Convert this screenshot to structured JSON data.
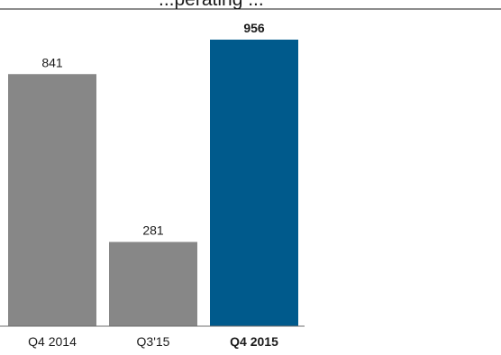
{
  "title": "...perating ...",
  "colors": {
    "bar": "#878787",
    "highlight": "#005a8c",
    "axis": "#6e6e6e",
    "text": "#1a1a1a"
  },
  "chart_data": {
    "type": "bar",
    "categories": [
      "Q4 2014",
      "Q3'15",
      "Q4 2015"
    ],
    "values": [
      841,
      281,
      956
    ],
    "highlight_index": 2,
    "ylim": [
      0,
      1000
    ],
    "grid": false,
    "legend": "none",
    "xlabel": "",
    "ylabel": ""
  }
}
